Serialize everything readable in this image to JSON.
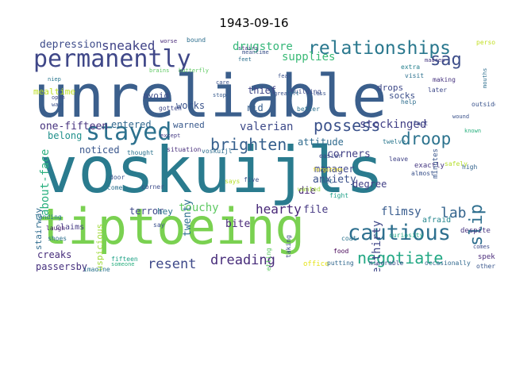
{
  "title": "1943-09-16",
  "words": [
    {
      "text": "unreliable",
      "color": "#3b5f8c"
    },
    {
      "text": "voskuijls",
      "color": "#2a7b8e"
    },
    {
      "text": "tiptoeing",
      "color": "#7ad151"
    },
    {
      "text": "permanently",
      "color": "#3f4788"
    },
    {
      "text": "relationships",
      "color": "#2a788e"
    },
    {
      "text": "stayed",
      "color": "#2c718e"
    },
    {
      "text": "cautious",
      "color": "#2d6f8e"
    },
    {
      "text": "possess",
      "color": "#3b528b"
    },
    {
      "text": "brighten",
      "color": "#355f8d"
    },
    {
      "text": "negotiate",
      "color": "#22a884"
    },
    {
      "text": "dreading",
      "color": "#472c7a"
    },
    {
      "text": "resent",
      "color": "#3e4989"
    },
    {
      "text": "droop",
      "color": "#2c738e"
    },
    {
      "text": "sag",
      "color": "#3d4e8a"
    },
    {
      "text": "slip",
      "color": "#2e6e8e"
    },
    {
      "text": "lab",
      "color": "#33638d"
    },
    {
      "text": "sneaked",
      "color": "#404387"
    },
    {
      "text": "drugstore",
      "color": "#35b779"
    },
    {
      "text": "supplies",
      "color": "#3aba76"
    },
    {
      "text": "depression",
      "color": "#3e4c8a"
    },
    {
      "text": "about-face",
      "color": "#2ab07f"
    },
    {
      "text": "mealtime",
      "color": "#bddf26"
    },
    {
      "text": "one-fifteen",
      "color": "#46327e"
    },
    {
      "text": "entered",
      "color": "#31688e"
    },
    {
      "text": "belong",
      "color": "#21918c"
    },
    {
      "text": "noticed",
      "color": "#39568c"
    },
    {
      "text": "valerian",
      "color": "#3e4a89"
    },
    {
      "text": "warned",
      "color": "#38598c"
    },
    {
      "text": "works",
      "color": "#3a538b"
    },
    {
      "text": "thief",
      "color": "#404688"
    },
    {
      "text": "rid",
      "color": "#355e8d"
    },
    {
      "text": "avoid",
      "color": "#3d4d8a"
    },
    {
      "text": "bite",
      "color": "#482878"
    },
    {
      "text": "stockinged",
      "color": "#424086"
    },
    {
      "text": "attitude",
      "color": "#2f6b8e"
    },
    {
      "text": "corners",
      "color": "#424186"
    },
    {
      "text": "manager",
      "color": "#3f4889"
    },
    {
      "text": "anxiety",
      "color": "#3b528b"
    },
    {
      "text": "degree",
      "color": "#424086"
    },
    {
      "text": "die",
      "color": "#482576"
    },
    {
      "text": "one-thirty",
      "color": "#3f4788"
    },
    {
      "text": "flimsy",
      "color": "#375b8d"
    },
    {
      "text": "hearty",
      "color": "#482878"
    },
    {
      "text": "file",
      "color": "#453882"
    },
    {
      "text": "touchy",
      "color": "#5ec962"
    },
    {
      "text": "terror",
      "color": "#3f4889"
    },
    {
      "text": "hey",
      "color": "#2c728e"
    },
    {
      "text": "twenty",
      "color": "#2d708e"
    },
    {
      "text": "suspicious",
      "color": "#a0da39"
    },
    {
      "text": "stairway",
      "color": "#2f6c8e"
    },
    {
      "text": "creaks",
      "color": "#472d7b"
    },
    {
      "text": "passersby",
      "color": "#46307e"
    },
    {
      "text": "socks",
      "color": "#3c4f8a"
    },
    {
      "text": "drops",
      "color": "#3e4989"
    },
    {
      "text": "claims",
      "color": "#443a83"
    },
    {
      "text": "shoes",
      "color": "#2e6f8e"
    },
    {
      "text": "laugh",
      "color": "#481f70"
    },
    {
      "text": "landing",
      "color": "#2a768e"
    },
    {
      "text": "fifteen",
      "color": "#1fa287"
    },
    {
      "text": "imagine",
      "color": "#2c738e"
    },
    {
      "text": "someone",
      "color": "#29af7f"
    },
    {
      "text": "office",
      "color": "#e5e419"
    },
    {
      "text": "putting",
      "color": "#31688e"
    },
    {
      "text": "miserable",
      "color": "#3b528b"
    },
    {
      "text": "occasionally",
      "color": "#31688e"
    },
    {
      "text": "spekta",
      "color": "#482979"
    },
    {
      "text": "others",
      "color": "#39568c"
    },
    {
      "text": "comes",
      "color": "#3e4c8a"
    },
    {
      "text": "afraid",
      "color": "#24868e"
    },
    {
      "text": "despite",
      "color": "#463480"
    },
    {
      "text": "outside",
      "color": "#3a548c"
    },
    {
      "text": "help",
      "color": "#2e6d8e"
    },
    {
      "text": "visit",
      "color": "#2c718e"
    },
    {
      "text": "later",
      "color": "#3e4989"
    },
    {
      "text": "making",
      "color": "#46337f"
    },
    {
      "text": "extra",
      "color": "#26818e"
    },
    {
      "text": "person",
      "color": "#c2df23"
    },
    {
      "text": "exactly",
      "color": "#453781"
    },
    {
      "text": "known",
      "color": "#2ab07f"
    },
    {
      "text": "almost",
      "color": "#3b528b"
    },
    {
      "text": "safely",
      "color": "#b5de2b"
    },
    {
      "text": "high",
      "color": "#33638d"
    },
    {
      "text": "minutes",
      "color": "#39568c"
    },
    {
      "text": "leave",
      "color": "#414487"
    },
    {
      "text": "twelve",
      "color": "#2a778e"
    },
    {
      "text": "easier",
      "color": "#3e4a89"
    },
    {
      "text": "met",
      "color": "#31688e"
    },
    {
      "text": "five",
      "color": "#3b528b"
    },
    {
      "text": "wanted",
      "color": "#9fda3a"
    },
    {
      "text": "fight",
      "color": "#1fa088"
    },
    {
      "text": "curiosity",
      "color": "#22a785"
    },
    {
      "text": "coat",
      "color": "#2b748e"
    },
    {
      "text": "food",
      "color": "#440154"
    },
    {
      "text": "taking",
      "color": "#3e4989"
    },
    {
      "text": "getting",
      "color": "#5ec962"
    },
    {
      "text": "door",
      "color": "#3b528b"
    },
    {
      "text": "come",
      "color": "#2c718e"
    },
    {
      "text": "corner",
      "color": "#3e4c8a"
    },
    {
      "text": "says",
      "color": "#b5de2b"
    },
    {
      "text": "say",
      "color": "#3b528b"
    },
    {
      "text": "situation",
      "color": "#472d7b"
    },
    {
      "text": "thought",
      "color": "#2c738e"
    },
    {
      "text": "voskuijl",
      "color": "#2e6d8e"
    },
    {
      "text": "except",
      "color": "#443a83"
    },
    {
      "text": "gotten",
      "color": "#3e4989"
    },
    {
      "text": "bound",
      "color": "#2e6f8e"
    },
    {
      "text": "stop",
      "color": "#375a8c"
    },
    {
      "text": "care",
      "color": "#3b528b"
    },
    {
      "text": "worse",
      "color": "#482979"
    },
    {
      "text": "open",
      "color": "#3e4a89"
    },
    {
      "text": "way",
      "color": "#3b528b"
    },
    {
      "text": "niep",
      "color": "#2a778e"
    },
    {
      "text": "building",
      "color": "#3e4989"
    },
    {
      "text": "better",
      "color": "#2c718e"
    },
    {
      "text": "great",
      "color": "#3b528b"
    },
    {
      "text": "left",
      "color": "#2e6f8e"
    },
    {
      "text": "less",
      "color": "#3a548c"
    },
    {
      "text": "fact",
      "color": "#3e4a89"
    },
    {
      "text": "feet",
      "color": "#2c718e"
    },
    {
      "text": "stairs",
      "color": "#46337f"
    },
    {
      "text": "meantime",
      "color": "#3b528b"
    },
    {
      "text": "brains",
      "color": "#5ec962"
    },
    {
      "text": "butterfly",
      "color": "#5ec962"
    },
    {
      "text": "mouths",
      "color": "#2e6f8e"
    },
    {
      "text": "maaren",
      "color": "#453781"
    },
    {
      "text": "wound",
      "color": "#3b528b"
    },
    {
      "text": "forgotten",
      "color": "#f4e61e"
    },
    {
      "text": "fear",
      "color": "#3b528b"
    }
  ]
}
